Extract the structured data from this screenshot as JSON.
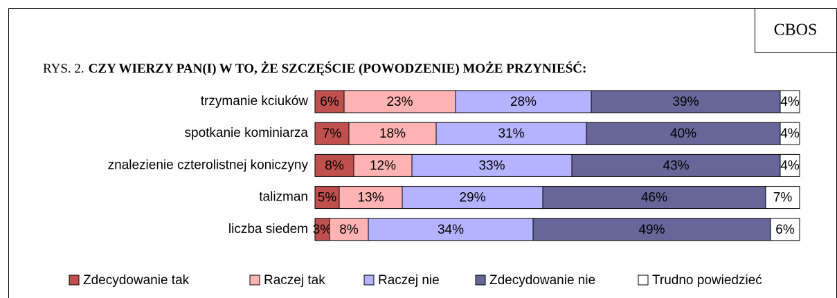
{
  "chart_data": {
    "type": "stacked_barh",
    "source": "CBOS",
    "title_label": "RYS. 2.",
    "title": "CZY WIERZY PAN(I) W TO, ŻE SZCZĘŚCIE (POWODZENIE) MOŻE PRZYNIEŚĆ:",
    "categories": [
      "trzymanie kciuków",
      "spotkanie kominiarza",
      "znalezienie czterolistnej koniczyny",
      "talizman",
      "liczba siedem"
    ],
    "xlim": [
      0,
      100
    ],
    "series": [
      {
        "name": "Zdecydowanie tak",
        "color": "#c0504d",
        "values": [
          6,
          7,
          8,
          5,
          3
        ],
        "value_labels": [
          "6%",
          "7%",
          "8%",
          "5%",
          "3%"
        ]
      },
      {
        "name": "Raczej tak",
        "color": "#ffb3b3",
        "values": [
          23,
          18,
          12,
          13,
          8
        ],
        "value_labels": [
          "23%",
          "18%",
          "12%",
          "13%",
          "8%"
        ]
      },
      {
        "name": "Raczej nie",
        "color": "#b3b3ff",
        "values": [
          28,
          31,
          33,
          29,
          34
        ],
        "value_labels": [
          "28%",
          "31%",
          "33%",
          "29%",
          "34%"
        ]
      },
      {
        "name": "Zdecydowanie nie",
        "color": "#666699",
        "values": [
          39,
          40,
          43,
          46,
          49
        ],
        "value_labels": [
          "39%",
          "40%",
          "43%",
          "46%",
          "49%"
        ]
      },
      {
        "name": "Trudno powiedzieć",
        "color": "#ffffff",
        "values": [
          4,
          4,
          4,
          7,
          6
        ],
        "value_labels": [
          "4%",
          "4%",
          "4%",
          "7%",
          "6%"
        ]
      }
    ]
  }
}
